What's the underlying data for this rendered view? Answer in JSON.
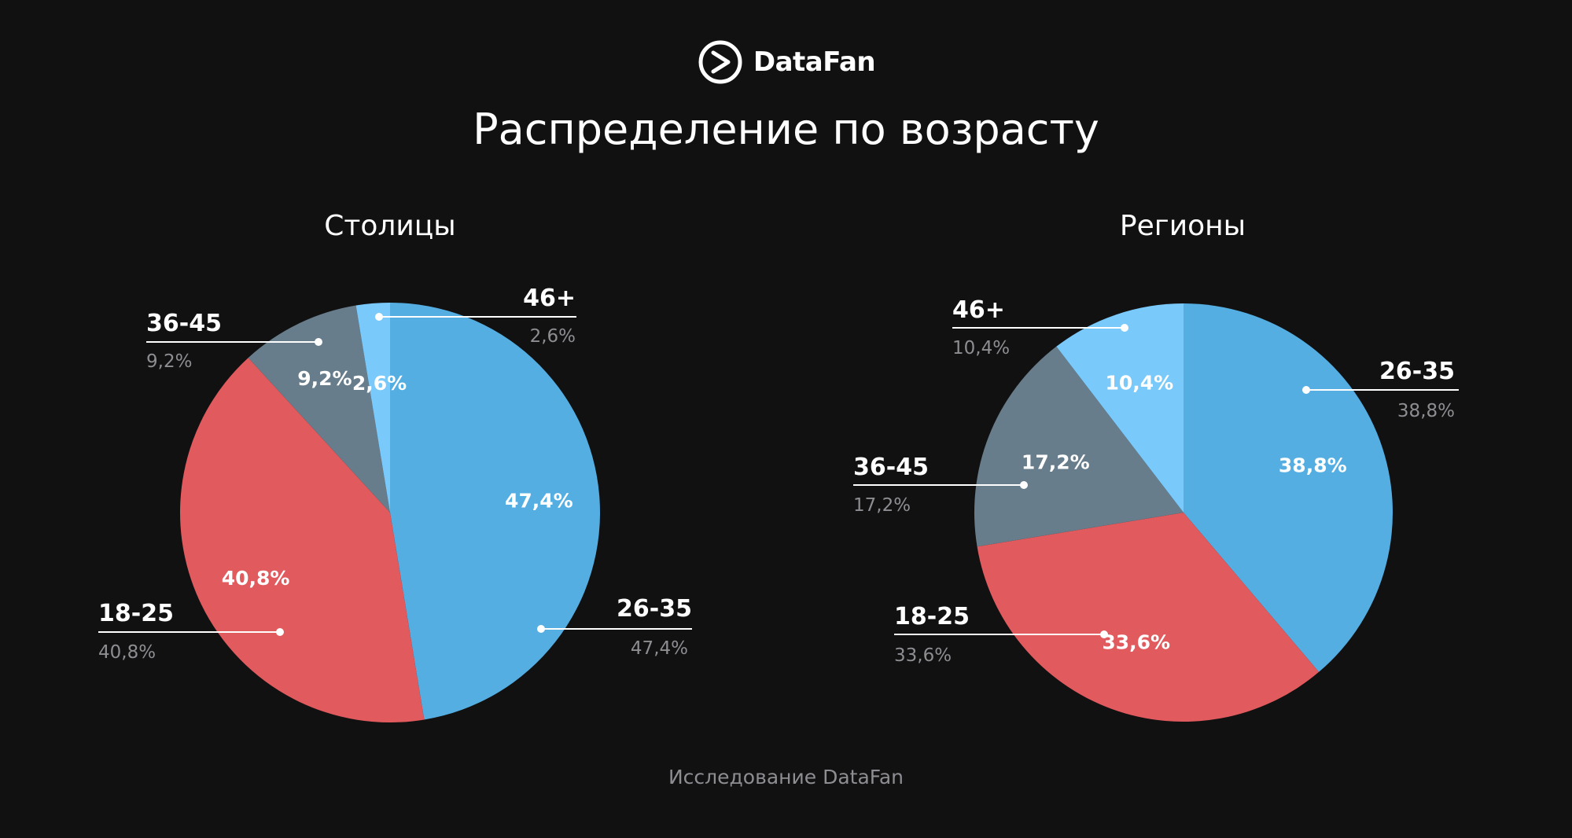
{
  "brand": {
    "name": "DataFan",
    "logo_icon": "play-circle-icon"
  },
  "title": "Распределение по возрасту",
  "footer": "Исследование DataFan",
  "colors": {
    "background": "#111112",
    "26-35": "#55aee2",
    "18-25": "#e15a5e",
    "36-45": "#687d8b",
    "46+": "#79c9fb"
  },
  "chart_data": [
    {
      "type": "pie",
      "title": "Столицы",
      "categories": [
        "26-35",
        "18-25",
        "36-45",
        "46+"
      ],
      "values": [
        47.4,
        40.8,
        9.2,
        2.6
      ],
      "slice_labels": [
        "47,4%",
        "40,8%",
        "9,2%",
        "2,6%"
      ],
      "callout_values": [
        "47,4%",
        "40,8%",
        "9,2%",
        "2,6%"
      ]
    },
    {
      "type": "pie",
      "title": "Регионы",
      "categories": [
        "26-35",
        "18-25",
        "36-45",
        "46+"
      ],
      "values": [
        38.8,
        33.6,
        17.2,
        10.4
      ],
      "slice_labels": [
        "38,8%",
        "33,6%",
        "17,2%",
        "10,4%"
      ],
      "callout_values": [
        "38,8%",
        "33,6%",
        "17,2%",
        "10,4%"
      ]
    }
  ]
}
